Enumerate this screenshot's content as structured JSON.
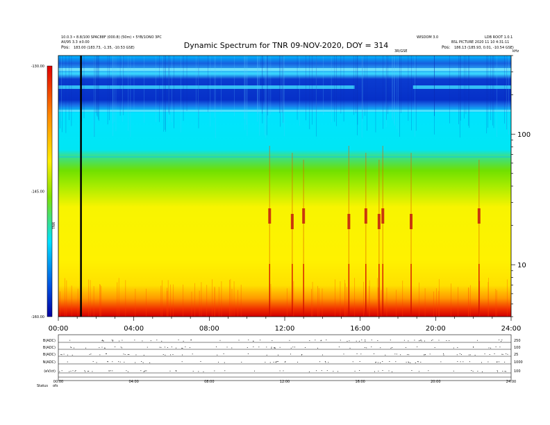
{
  "header": {
    "left_line1": "10.0.3 • 8.8/100 SPAC88F (000.8) (50m) • 5YB/1ONO 3PC",
    "left_line2": "All/95 3.3 ±0.00",
    "left_line3_prefix": "Pos:",
    "left_line3": "183.00 (183.73, -1.35, -10.53 GSE)",
    "right_line1": "WISDOM 3.0",
    "right_line1b": "LDB ROOT 1.0.1",
    "right_line2": "BSL PICTURE 2020 11 10 4:31:11",
    "right_line3_prefix": "Pos:",
    "right_line3": "186.13 (185.93, 0.01, -10.54 GSE)",
    "marker_label": "3R/GSE",
    "corner_label": "kHz"
  },
  "chart_data": {
    "type": "heatmap",
    "title": "Dynamic Spectrum for TNR 09-NOV-2020, DOY = 314",
    "x_tick_labels": [
      "00:00",
      "04:00",
      "08:00",
      "12:00",
      "16:00",
      "20:00",
      "24:00"
    ],
    "x_hours": [
      0,
      4,
      8,
      12,
      16,
      20,
      24
    ],
    "xlim": [
      0,
      24
    ],
    "y_scale": "log",
    "y_tick_labels": [
      "100",
      "10"
    ],
    "y_tick_values": [
      100,
      10
    ],
    "ylim": [
      4,
      400
    ],
    "y_axis_label": "TNR",
    "colorbar": {
      "labels": [
        "-130.00",
        "-145.00",
        "-160.00"
      ],
      "values": [
        -130,
        -145,
        -160
      ],
      "range": [
        -160,
        -130
      ]
    },
    "vertical_marker_hour": 1.2,
    "bursts_hours": [
      11.2,
      12.4,
      13.0,
      15.4,
      16.3,
      17.0,
      17.2,
      18.7,
      22.3
    ]
  },
  "footer": {
    "panel_labels": [
      "B(ADC)",
      "B(ADC)",
      "B(ADC)",
      "N(ADC)",
      "(eV/ct)"
    ],
    "panel_right_labels": [
      "250",
      "100",
      "25",
      "1000",
      "100"
    ],
    "bottom_label": "Status",
    "bottom_label2": "ofs",
    "x_tick_labels": [
      "00:00",
      "04:00",
      "08:00",
      "12:00",
      "16:00",
      "20:00",
      "24:00"
    ]
  },
  "colors": {
    "spectrum_top": "#0026d0",
    "spectrum_mid_blue": "#00d4ff",
    "spectrum_green": "#50e000",
    "spectrum_yellow": "#fff200",
    "spectrum_red": "#e00000"
  }
}
